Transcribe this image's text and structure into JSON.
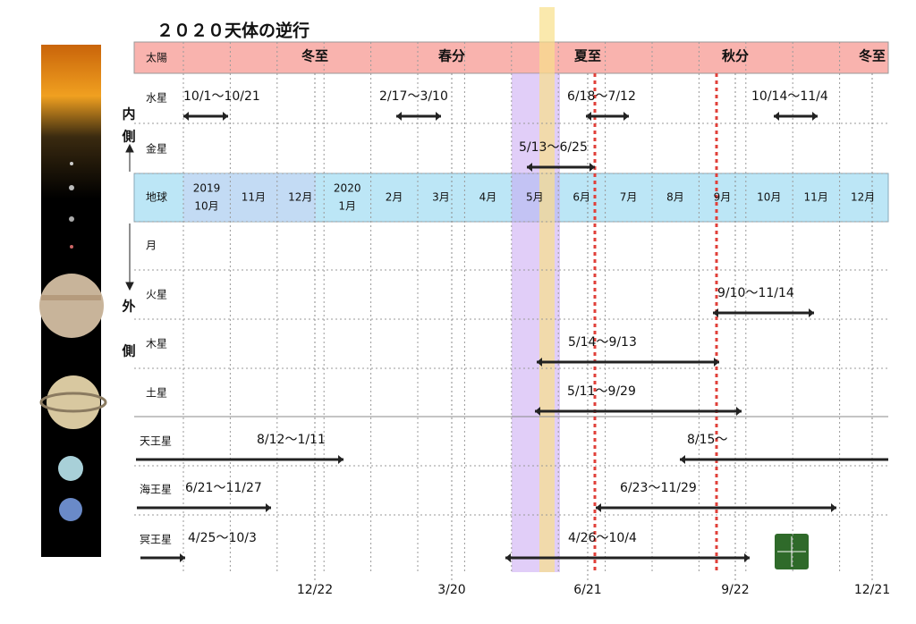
{
  "title": "２０２０天体の逆行",
  "sun": {
    "label": "太陽",
    "markers": [
      "冬至",
      "春分",
      "夏至",
      "秋分",
      "冬至"
    ]
  },
  "earth": {
    "label": "地球",
    "months": [
      [
        "2019",
        "10月"
      ],
      [
        "11月"
      ],
      [
        "12月"
      ],
      [
        "2020",
        "1月"
      ],
      [
        "2月"
      ],
      [
        "3月"
      ],
      [
        "4月"
      ],
      [
        "5月"
      ],
      [
        "6月"
      ],
      [
        "7月"
      ],
      [
        "8月"
      ],
      [
        "9月"
      ],
      [
        "10月"
      ],
      [
        "11月"
      ],
      [
        "12月"
      ]
    ]
  },
  "side": {
    "inner": [
      "内",
      "側"
    ],
    "outer": [
      "外",
      "側"
    ]
  },
  "bodies": [
    {
      "name": "水星",
      "ranges": [
        "10/1〜10/21",
        "2/17〜3/10",
        "6/18〜7/12",
        "10/14〜11/4"
      ]
    },
    {
      "name": "金星",
      "ranges": [
        "5/13〜6/25"
      ]
    },
    {
      "name": "月",
      "ranges": []
    },
    {
      "name": "火星",
      "ranges": [
        "9/10〜11/14"
      ]
    },
    {
      "name": "木星",
      "ranges": [
        "5/14〜9/13"
      ]
    },
    {
      "name": "土星",
      "ranges": [
        "5/11〜9/29"
      ]
    },
    {
      "name": "天王星",
      "ranges": [
        "8/12〜1/11",
        "8/15〜"
      ]
    },
    {
      "name": "海王星",
      "ranges": [
        "6/21〜11/27",
        "6/23〜11/29"
      ]
    },
    {
      "name": "冥王星",
      "ranges": [
        "4/25〜10/3",
        "4/26〜10/4"
      ]
    }
  ],
  "axis": [
    "12/22",
    "3/20",
    "6/21",
    "9/22",
    "12/21"
  ]
}
